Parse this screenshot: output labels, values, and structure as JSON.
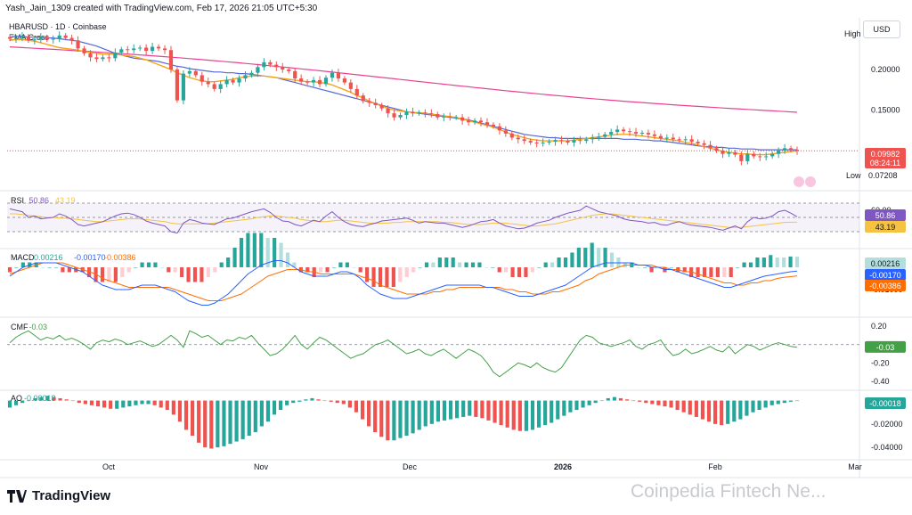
{
  "header": "Yash_Jain_1309 created with TradingView.com, Feb 17, 2026 21:05 UTC+5:30",
  "symbol_line": "HBARUSD · 1D · Coinbase",
  "indicator": "EMA Cross",
  "currency": "USD",
  "logo_text": "TradingView",
  "watermark": "Coinpedia Fintech Ne...",
  "colors": {
    "up": "#26a69a",
    "down": "#ef5350",
    "ema_fast": "#f7a21b",
    "ema_mid": "#5468d8",
    "ema_slow": "#e84393",
    "rsi": "#7e57c2",
    "rsi_ma": "#f5c242",
    "macd": "#2962ff",
    "signal": "#ff6d00",
    "cmf": "#43a047",
    "ao_up": "#26a69a",
    "ao_down": "#ef5350"
  },
  "chart_data": [
    {
      "type": "candlestick",
      "name": "price",
      "x_labels": [
        "Oct",
        "Nov",
        "Dec",
        "2026",
        "Feb",
        "Mar"
      ],
      "y_ticks": [
        "0.20000",
        "0.15000"
      ],
      "ylim": [
        0.055,
        0.255
      ],
      "high_label": "High",
      "low_label": "Low",
      "low_value": "0.07208",
      "last_price": "0.09982",
      "countdown": "08:24:11",
      "closes": [
        0.238,
        0.239,
        0.241,
        0.236,
        0.237,
        0.24,
        0.237,
        0.238,
        0.242,
        0.239,
        0.236,
        0.226,
        0.22,
        0.215,
        0.213,
        0.215,
        0.214,
        0.221,
        0.225,
        0.224,
        0.226,
        0.227,
        0.223,
        0.228,
        0.226,
        0.224,
        0.2,
        0.162,
        0.195,
        0.198,
        0.193,
        0.185,
        0.182,
        0.176,
        0.182,
        0.187,
        0.184,
        0.189,
        0.193,
        0.196,
        0.203,
        0.209,
        0.206,
        0.203,
        0.2,
        0.198,
        0.189,
        0.185,
        0.184,
        0.187,
        0.182,
        0.19,
        0.196,
        0.189,
        0.184,
        0.176,
        0.168,
        0.161,
        0.159,
        0.156,
        0.152,
        0.146,
        0.141,
        0.144,
        0.148,
        0.146,
        0.147,
        0.146,
        0.145,
        0.141,
        0.142,
        0.141,
        0.141,
        0.137,
        0.135,
        0.137,
        0.135,
        0.132,
        0.13,
        0.125,
        0.121,
        0.116,
        0.114,
        0.112,
        0.11,
        0.109,
        0.11,
        0.111,
        0.113,
        0.112,
        0.11,
        0.113,
        0.112,
        0.114,
        0.116,
        0.117,
        0.12,
        0.123,
        0.126,
        0.124,
        0.123,
        0.121,
        0.122,
        0.12,
        0.118,
        0.115,
        0.116,
        0.114,
        0.113,
        0.114,
        0.111,
        0.109,
        0.107,
        0.103,
        0.1,
        0.096,
        0.098,
        0.095,
        0.087,
        0.096,
        0.093,
        0.092,
        0.093,
        0.096,
        0.1,
        0.103,
        0.101,
        0.09982
      ],
      "ema_fast": [
        0.236,
        0.237,
        0.237,
        0.236,
        0.235,
        0.233,
        0.231,
        0.229,
        0.227,
        0.226,
        0.225,
        0.224,
        0.222,
        0.221,
        0.22,
        0.219,
        0.219,
        0.219,
        0.218,
        0.217,
        0.216,
        0.214,
        0.212,
        0.209,
        0.206,
        0.203,
        0.2,
        0.196,
        0.193,
        0.19,
        0.188,
        0.186,
        0.185,
        0.185,
        0.186,
        0.187,
        0.188,
        0.19,
        0.191,
        0.192,
        0.192,
        0.192,
        0.191,
        0.19,
        0.189,
        0.188,
        0.187,
        0.186,
        0.185,
        0.185,
        0.184,
        0.183,
        0.181,
        0.178,
        0.175,
        0.172,
        0.168,
        0.165,
        0.161,
        0.158,
        0.155,
        0.152,
        0.15,
        0.149,
        0.148,
        0.147,
        0.147,
        0.146,
        0.145,
        0.144,
        0.143,
        0.142,
        0.141,
        0.139,
        0.137,
        0.135,
        0.133,
        0.131,
        0.129,
        0.126,
        0.123,
        0.12,
        0.118,
        0.116,
        0.114,
        0.113,
        0.112,
        0.112,
        0.112,
        0.112,
        0.112,
        0.113,
        0.114,
        0.115,
        0.116,
        0.117,
        0.118,
        0.119,
        0.12,
        0.12,
        0.12,
        0.119,
        0.118,
        0.117,
        0.116,
        0.115,
        0.114,
        0.113,
        0.112,
        0.11,
        0.109,
        0.107,
        0.105,
        0.103,
        0.101,
        0.099,
        0.098,
        0.097,
        0.096,
        0.096,
        0.095,
        0.095,
        0.095,
        0.096,
        0.097,
        0.098,
        0.099,
        0.0995
      ],
      "ema_mid": [
        0.24,
        0.241,
        0.241,
        0.24,
        0.24,
        0.24,
        0.239,
        0.239,
        0.238,
        0.237,
        0.236,
        0.235,
        0.233,
        0.231,
        0.229,
        0.226,
        0.223,
        0.22,
        0.218,
        0.216,
        0.214,
        0.213,
        0.212,
        0.211,
        0.21,
        0.208,
        0.206,
        0.204,
        0.203,
        0.201,
        0.2,
        0.199,
        0.198,
        0.197,
        0.197,
        0.196,
        0.196,
        0.195,
        0.195,
        0.194,
        0.193,
        0.192,
        0.191,
        0.19,
        0.188,
        0.186,
        0.184,
        0.182,
        0.18,
        0.178,
        0.176,
        0.174,
        0.172,
        0.17,
        0.168,
        0.166,
        0.164,
        0.162,
        0.16,
        0.158,
        0.156,
        0.154,
        0.152,
        0.15,
        0.148,
        0.147,
        0.146,
        0.145,
        0.144,
        0.143,
        0.142,
        0.141,
        0.14,
        0.139,
        0.138,
        0.136,
        0.134,
        0.132,
        0.13,
        0.128,
        0.126,
        0.124,
        0.122,
        0.12,
        0.119,
        0.118,
        0.117,
        0.116,
        0.116,
        0.115,
        0.115,
        0.115,
        0.115,
        0.115,
        0.115,
        0.115,
        0.115,
        0.115,
        0.115,
        0.114,
        0.114,
        0.114,
        0.113,
        0.113,
        0.112,
        0.112,
        0.111,
        0.11,
        0.109,
        0.108,
        0.107,
        0.106,
        0.105,
        0.105,
        0.104,
        0.104,
        0.103,
        0.103,
        0.102,
        0.102,
        0.102,
        0.101,
        0.101,
        0.101,
        0.101,
        0.101,
        0.101,
        0.101
      ],
      "ema_slow_start": 0.228,
      "ema_slow_end": 0.147
    },
    {
      "type": "line",
      "name": "RSI",
      "label": "RSI",
      "value_rsi": "50.86",
      "value_ma": "43.19",
      "y_ticks": [
        "60.00"
      ],
      "ylim": [
        20,
        80
      ],
      "band": [
        30,
        70
      ],
      "rsi": [
        62,
        60,
        58,
        50,
        52,
        48,
        49,
        50,
        55,
        52,
        47,
        40,
        38,
        40,
        42,
        44,
        48,
        52,
        55,
        56,
        54,
        50,
        45,
        42,
        40,
        38,
        30,
        28,
        42,
        47,
        45,
        42,
        41,
        40,
        44,
        48,
        49,
        52,
        55,
        58,
        60,
        62,
        57,
        50,
        45,
        44,
        40,
        38,
        42,
        46,
        44,
        52,
        58,
        50,
        44,
        40,
        38,
        37,
        40,
        42,
        45,
        46,
        47,
        48,
        49,
        46,
        42,
        44,
        43,
        42,
        42,
        40,
        38,
        36,
        38,
        41,
        44,
        45,
        47,
        42,
        38,
        36,
        34,
        35,
        38,
        42,
        44,
        46,
        50,
        53,
        56,
        58,
        60,
        66,
        62,
        58,
        56,
        54,
        52,
        48,
        46,
        45,
        44,
        42,
        43,
        40,
        39,
        42,
        44,
        41,
        39,
        38,
        37,
        36,
        34,
        32,
        35,
        38,
        34,
        44,
        50,
        48,
        49,
        52,
        58,
        60,
        56,
        50.86
      ],
      "rsi_ma": [
        55,
        55,
        54,
        53,
        52,
        51,
        50,
        50,
        49,
        49,
        48,
        47,
        46,
        45,
        44,
        44,
        45,
        46,
        47,
        48,
        48,
        48,
        47,
        46,
        45,
        44,
        42,
        41,
        41,
        41,
        41,
        41,
        41,
        42,
        43,
        44,
        45,
        46,
        47,
        48,
        50,
        51,
        52,
        52,
        51,
        50,
        49,
        47,
        46,
        45,
        44,
        44,
        45,
        46,
        46,
        45,
        44,
        43,
        42,
        42,
        42,
        42,
        43,
        43,
        44,
        44,
        44,
        44,
        44,
        44,
        43,
        43,
        42,
        41,
        40,
        40,
        40,
        41,
        42,
        42,
        42,
        41,
        40,
        39,
        38,
        38,
        39,
        40,
        41,
        43,
        45,
        47,
        49,
        51,
        53,
        54,
        55,
        55,
        54,
        53,
        52,
        51,
        50,
        49,
        48,
        47,
        46,
        45,
        44,
        43,
        42,
        41,
        40,
        39,
        38,
        37,
        36,
        36,
        36,
        37,
        38,
        39,
        40,
        41,
        42,
        43,
        43.19,
        43.19
      ]
    },
    {
      "type": "bar+line",
      "name": "MACD",
      "label": "MACD",
      "values": [
        "0.00216",
        "-0.00170",
        "-0.00386"
      ],
      "y_ticks": [
        "-0.01000"
      ],
      "ylim": [
        -0.02,
        0.006
      ],
      "macd": [
        -0.004,
        -0.002,
        0.0,
        0.001,
        0.002,
        0.002,
        0.002,
        0.002,
        0.001,
        0.0,
        -0.001,
        -0.002,
        -0.004,
        -0.006,
        -0.008,
        -0.009,
        -0.01,
        -0.01,
        -0.01,
        -0.009,
        -0.008,
        -0.008,
        -0.008,
        -0.009,
        -0.01,
        -0.011,
        -0.013,
        -0.015,
        -0.016,
        -0.017,
        -0.017,
        -0.016,
        -0.014,
        -0.012,
        -0.009,
        -0.006,
        -0.003,
        -0.001,
        0.001,
        0.002,
        0.003,
        0.003,
        0.002,
        0.0,
        -0.002,
        -0.003,
        -0.004,
        -0.004,
        -0.004,
        -0.003,
        -0.002,
        -0.002,
        -0.003,
        -0.005,
        -0.008,
        -0.01,
        -0.012,
        -0.013,
        -0.014,
        -0.014,
        -0.014,
        -0.013,
        -0.012,
        -0.011,
        -0.01,
        -0.009,
        -0.008,
        -0.008,
        -0.008,
        -0.008,
        -0.008,
        -0.008,
        -0.009,
        -0.009,
        -0.01,
        -0.011,
        -0.012,
        -0.013,
        -0.013,
        -0.013,
        -0.012,
        -0.011,
        -0.01,
        -0.009,
        -0.008,
        -0.006,
        -0.004,
        -0.002,
        0.0,
        0.001,
        0.002,
        0.002,
        0.002,
        0.002,
        0.002,
        0.001,
        0.001,
        0.0,
        0.0,
        -0.001,
        -0.001,
        -0.002,
        -0.003,
        -0.004,
        -0.005,
        -0.006,
        -0.007,
        -0.008,
        -0.009,
        -0.009,
        -0.008,
        -0.007,
        -0.006,
        -0.005,
        -0.004,
        -0.0035,
        -0.003,
        -0.0025,
        -0.002,
        -0.0017
      ],
      "signal": [
        -0.003,
        -0.002,
        -0.001,
        0.0,
        0.001,
        0.002,
        0.002,
        0.002,
        0.002,
        0.001,
        0.0,
        -0.001,
        -0.002,
        -0.003,
        -0.005,
        -0.006,
        -0.007,
        -0.008,
        -0.009,
        -0.009,
        -0.009,
        -0.009,
        -0.009,
        -0.009,
        -0.009,
        -0.01,
        -0.011,
        -0.012,
        -0.013,
        -0.014,
        -0.015,
        -0.015,
        -0.015,
        -0.014,
        -0.013,
        -0.012,
        -0.01,
        -0.008,
        -0.006,
        -0.004,
        -0.003,
        -0.002,
        -0.001,
        -0.001,
        -0.001,
        -0.002,
        -0.002,
        -0.003,
        -0.003,
        -0.003,
        -0.003,
        -0.003,
        -0.003,
        -0.004,
        -0.005,
        -0.006,
        -0.008,
        -0.009,
        -0.01,
        -0.011,
        -0.012,
        -0.012,
        -0.012,
        -0.012,
        -0.011,
        -0.011,
        -0.01,
        -0.01,
        -0.009,
        -0.009,
        -0.009,
        -0.009,
        -0.009,
        -0.009,
        -0.009,
        -0.01,
        -0.01,
        -0.011,
        -0.011,
        -0.012,
        -0.012,
        -0.012,
        -0.011,
        -0.011,
        -0.01,
        -0.009,
        -0.008,
        -0.006,
        -0.005,
        -0.003,
        -0.002,
        -0.001,
        0.0,
        0.001,
        0.001,
        0.001,
        0.001,
        0.001,
        0.0,
        0.0,
        -0.001,
        -0.001,
        -0.002,
        -0.002,
        -0.003,
        -0.004,
        -0.005,
        -0.006,
        -0.007,
        -0.007,
        -0.008,
        -0.008,
        -0.007,
        -0.007,
        -0.006,
        -0.006,
        -0.005,
        -0.0045,
        -0.0042,
        -0.00386
      ]
    },
    {
      "type": "line",
      "name": "CMF",
      "label": "CMF",
      "value": "-0.03",
      "y_ticks": [
        "0.20",
        "-0.20",
        "-0.40"
      ],
      "ylim": [
        -0.42,
        0.24
      ],
      "cmf": [
        0.02,
        0.08,
        0.12,
        0.15,
        0.1,
        0.05,
        0.08,
        0.06,
        0.1,
        0.05,
        0.07,
        0.04,
        0.0,
        -0.05,
        0.02,
        0.05,
        0.03,
        0.06,
        0.04,
        0.0,
        0.02,
        0.04,
        0.01,
        -0.02,
        0.0,
        0.05,
        0.1,
        0.05,
        -0.03,
        0.15,
        0.12,
        0.08,
        0.1,
        0.05,
        0.0,
        0.05,
        0.04,
        0.08,
        0.06,
        0.1,
        0.02,
        -0.05,
        -0.12,
        -0.1,
        -0.05,
        0.02,
        0.1,
        0.0,
        -0.05,
        0.02,
        0.08,
        0.05,
        0.0,
        -0.05,
        -0.1,
        -0.15,
        -0.12,
        -0.1,
        -0.05,
        0.0,
        0.02,
        0.05,
        0.0,
        -0.05,
        -0.1,
        -0.08,
        -0.05,
        -0.1,
        -0.12,
        -0.08,
        -0.05,
        -0.1,
        -0.15,
        -0.1,
        -0.05,
        -0.08,
        -0.12,
        -0.2,
        -0.3,
        -0.35,
        -0.3,
        -0.25,
        -0.2,
        -0.22,
        -0.25,
        -0.2,
        -0.25,
        -0.28,
        -0.3,
        -0.25,
        -0.15,
        -0.05,
        0.05,
        0.1,
        0.08,
        0.02,
        0.0,
        -0.02,
        0.0,
        0.02,
        0.05,
        -0.02,
        -0.05,
        0.0,
        0.02,
        0.05,
        -0.05,
        -0.12,
        -0.1,
        -0.05,
        -0.1,
        -0.08,
        -0.05,
        -0.02,
        -0.06,
        -0.08,
        -0.02,
        -0.1,
        -0.05,
        0.0,
        -0.02,
        -0.06,
        -0.03,
        0.0,
        0.02,
        0.0,
        -0.02,
        -0.03
      ]
    },
    {
      "type": "bar",
      "name": "AO",
      "label": "AO",
      "value": "-0.00018",
      "y_ticks": [
        "-0.02000",
        "-0.04000"
      ],
      "ylim": [
        -0.046,
        0.005
      ],
      "ao": [
        -0.006,
        -0.004,
        -0.002,
        0.0,
        0.002,
        0.003,
        0.004,
        0.003,
        0.002,
        0.001,
        0.0,
        -0.002,
        -0.003,
        -0.004,
        -0.005,
        -0.006,
        -0.007,
        -0.007,
        -0.006,
        -0.005,
        -0.004,
        -0.003,
        -0.003,
        -0.004,
        -0.006,
        -0.008,
        -0.012,
        -0.018,
        -0.025,
        -0.03,
        -0.036,
        -0.04,
        -0.041,
        -0.04,
        -0.039,
        -0.037,
        -0.035,
        -0.033,
        -0.03,
        -0.027,
        -0.022,
        -0.018,
        -0.012,
        -0.008,
        -0.004,
        -0.002,
        -0.001,
        0.001,
        0.002,
        0.001,
        0.0,
        -0.001,
        -0.002,
        -0.003,
        -0.006,
        -0.01,
        -0.016,
        -0.022,
        -0.027,
        -0.031,
        -0.034,
        -0.034,
        -0.032,
        -0.03,
        -0.028,
        -0.025,
        -0.022,
        -0.02,
        -0.018,
        -0.017,
        -0.016,
        -0.015,
        -0.014,
        -0.013,
        -0.014,
        -0.015,
        -0.017,
        -0.019,
        -0.021,
        -0.023,
        -0.025,
        -0.026,
        -0.026,
        -0.025,
        -0.023,
        -0.021,
        -0.019,
        -0.016,
        -0.013,
        -0.01,
        -0.008,
        -0.006,
        -0.004,
        -0.002,
        0.0,
        0.002,
        0.003,
        0.002,
        0.001,
        0.0,
        -0.001,
        -0.002,
        -0.003,
        -0.004,
        -0.005,
        -0.006,
        -0.008,
        -0.01,
        -0.012,
        -0.014,
        -0.016,
        -0.018,
        -0.02,
        -0.021,
        -0.02,
        -0.018,
        -0.016,
        -0.013,
        -0.01,
        -0.008,
        -0.006,
        -0.004,
        -0.003,
        -0.002,
        -0.001,
        -0.00018
      ]
    }
  ]
}
